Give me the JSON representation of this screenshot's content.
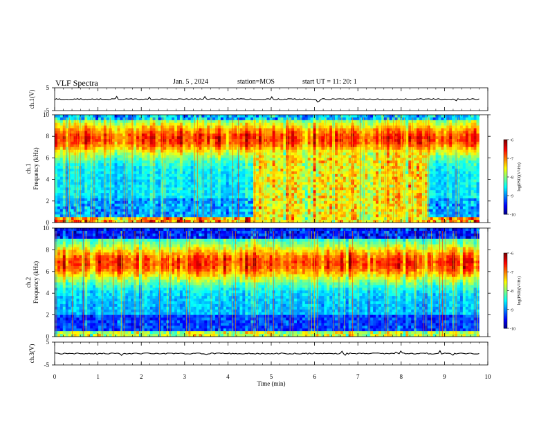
{
  "header": {
    "title": "VLF Spectra",
    "date": "Jan. 5 , 2024",
    "station": "station=MOS",
    "start_ut": "start UT =  11: 20: 1"
  },
  "chart_data": [
    {
      "type": "line",
      "panel": "ch.1(V)",
      "ylabel": "ch.1(V)",
      "ylim": [
        -5,
        5
      ],
      "yticks": [
        5,
        -5
      ],
      "xlim": [
        0,
        10
      ],
      "series": [
        {
          "x": [
            0,
            9.8
          ],
          "values": [
            0,
            0
          ]
        }
      ]
    },
    {
      "type": "heatmap",
      "panel": "ch.1 spectrogram",
      "ylabel": "ch.1\nFrequency (kHz)",
      "ylim": [
        0,
        10
      ],
      "yticks": [
        0,
        2,
        4,
        6,
        8,
        10
      ],
      "xlim": [
        0,
        10
      ],
      "data_end_min": 9.8,
      "colorbar": {
        "label": "log(PSD)(V²/Hz)",
        "range": [
          -10,
          -6
        ],
        "ticks": [
          -6,
          -7,
          -8,
          -9,
          -10
        ]
      }
    },
    {
      "type": "heatmap",
      "panel": "ch.2 spectrogram",
      "ylabel": "ch.2\nFrequency (kHz)",
      "ylim": [
        0,
        10
      ],
      "yticks": [
        0,
        2,
        4,
        6,
        8,
        10
      ],
      "xlim": [
        0,
        10
      ],
      "data_end_min": 9.8,
      "colorbar": {
        "label": "log(PSD)(V²/Hz)",
        "range": [
          -10,
          -6
        ],
        "ticks": [
          -6,
          -7,
          -8,
          -9,
          -10
        ]
      }
    },
    {
      "type": "line",
      "panel": "ch.3(V)",
      "ylabel": "ch.3(V)",
      "ylim": [
        -5,
        5
      ],
      "yticks": [
        5,
        -5
      ],
      "xlim": [
        0,
        10
      ],
      "series": [
        {
          "x": [
            0,
            9.8
          ],
          "values": [
            0,
            0
          ]
        }
      ]
    }
  ],
  "xaxis": {
    "label": "Time (min)",
    "ticks": [
      0,
      1,
      2,
      3,
      4,
      5,
      6,
      7,
      8,
      9,
      10
    ]
  }
}
